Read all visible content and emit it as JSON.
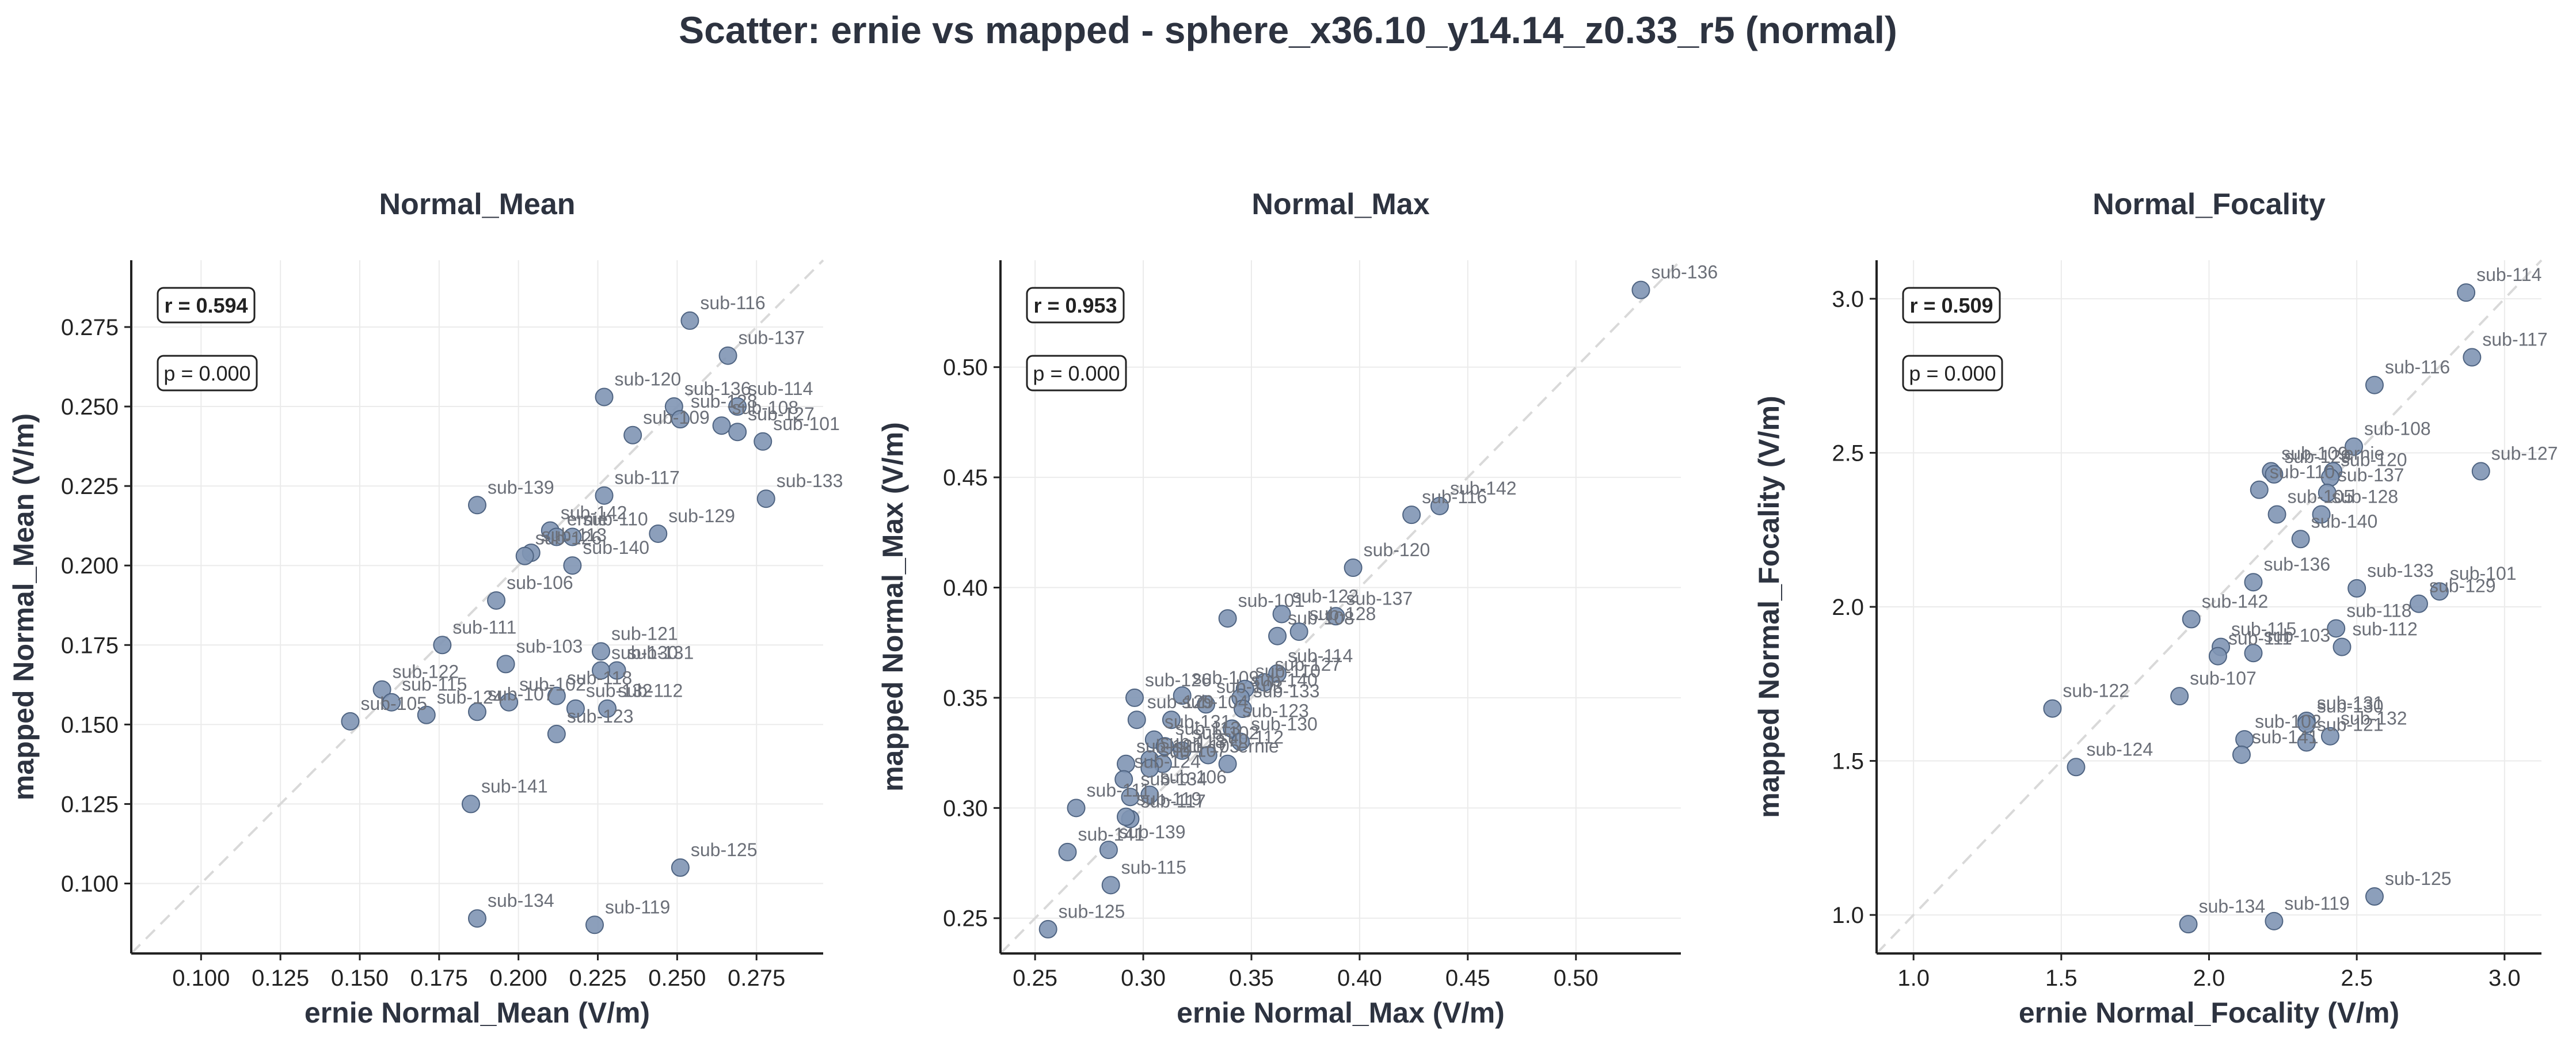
{
  "title": "Scatter: ernie vs mapped - sphere_x36.10_y14.14_z0.33_r5 (normal)",
  "colors": {
    "point": "#7f95b4",
    "point_edge": "#4f6482",
    "identity": "#d9d9d9",
    "grid": "#ebebeb",
    "text": "#2d3340"
  },
  "chart_data": [
    {
      "type": "scatter",
      "title": "Normal_Mean",
      "xlabel": "ernie Normal_Mean (V/m)",
      "ylabel": "mapped Normal_Mean (V/m)",
      "xlim": [
        0.078,
        0.296
      ],
      "ylim": [
        0.078,
        0.296
      ],
      "xticks": [
        0.1,
        0.125,
        0.15,
        0.175,
        0.2,
        0.225,
        0.25,
        0.275
      ],
      "yticks": [
        0.1,
        0.125,
        0.15,
        0.175,
        0.2,
        0.225,
        0.25,
        0.275
      ],
      "tick_labels_x": [
        "0.100",
        "0.125",
        "0.150",
        "0.175",
        "0.200",
        "0.225",
        "0.250",
        "0.275"
      ],
      "tick_labels_y": [
        "0.100",
        "0.125",
        "0.150",
        "0.175",
        "0.200",
        "0.225",
        "0.250",
        "0.275"
      ],
      "grid": true,
      "identity_line": true,
      "annotations": [
        "r = 0.594",
        "p = 0.000"
      ],
      "points": [
        {
          "label": "sub-116",
          "x": 0.254,
          "y": 0.277
        },
        {
          "label": "sub-137",
          "x": 0.266,
          "y": 0.266
        },
        {
          "label": "sub-120",
          "x": 0.227,
          "y": 0.253
        },
        {
          "label": "sub-136",
          "x": 0.249,
          "y": 0.25
        },
        {
          "label": "sub-114",
          "x": 0.269,
          "y": 0.25
        },
        {
          "label": "sub-128",
          "x": 0.251,
          "y": 0.246
        },
        {
          "label": "sub-108",
          "x": 0.264,
          "y": 0.244
        },
        {
          "label": "sub-127",
          "x": 0.269,
          "y": 0.242
        },
        {
          "label": "sub-109",
          "x": 0.236,
          "y": 0.241
        },
        {
          "label": "sub-101",
          "x": 0.277,
          "y": 0.239
        },
        {
          "label": "sub-133",
          "x": 0.278,
          "y": 0.221
        },
        {
          "label": "sub-117",
          "x": 0.227,
          "y": 0.222
        },
        {
          "label": "sub-139",
          "x": 0.187,
          "y": 0.219
        },
        {
          "label": "sub-142",
          "x": 0.21,
          "y": 0.211
        },
        {
          "label": "sub-129",
          "x": 0.244,
          "y": 0.21
        },
        {
          "label": "sub-110",
          "x": 0.217,
          "y": 0.209
        },
        {
          "label": "ernie",
          "x": 0.212,
          "y": 0.209
        },
        {
          "label": "sub-113",
          "x": 0.204,
          "y": 0.204
        },
        {
          "label": "sub-126",
          "x": 0.202,
          "y": 0.203
        },
        {
          "label": "sub-140",
          "x": 0.217,
          "y": 0.2
        },
        {
          "label": "sub-106",
          "x": 0.193,
          "y": 0.189
        },
        {
          "label": "sub-111",
          "x": 0.176,
          "y": 0.175
        },
        {
          "label": "sub-121",
          "x": 0.226,
          "y": 0.173
        },
        {
          "label": "sub-103",
          "x": 0.196,
          "y": 0.169
        },
        {
          "label": "sub-131",
          "x": 0.231,
          "y": 0.167
        },
        {
          "label": "sub-130",
          "x": 0.226,
          "y": 0.167
        },
        {
          "label": "sub-122",
          "x": 0.157,
          "y": 0.161
        },
        {
          "label": "sub-118",
          "x": 0.212,
          "y": 0.159
        },
        {
          "label": "sub-115",
          "x": 0.16,
          "y": 0.157
        },
        {
          "label": "sub-102",
          "x": 0.197,
          "y": 0.157
        },
        {
          "label": "sub-112",
          "x": 0.228,
          "y": 0.155
        },
        {
          "label": "sub-107",
          "x": 0.187,
          "y": 0.154
        },
        {
          "label": "sub-132",
          "x": 0.218,
          "y": 0.155
        },
        {
          "label": "sub-124",
          "x": 0.171,
          "y": 0.153
        },
        {
          "label": "sub-105",
          "x": 0.147,
          "y": 0.151
        },
        {
          "label": "sub-123",
          "x": 0.212,
          "y": 0.147
        },
        {
          "label": "sub-141",
          "x": 0.185,
          "y": 0.125
        },
        {
          "label": "sub-125",
          "x": 0.251,
          "y": 0.105
        },
        {
          "label": "sub-134",
          "x": 0.187,
          "y": 0.089
        },
        {
          "label": "sub-119",
          "x": 0.224,
          "y": 0.087
        }
      ]
    },
    {
      "type": "scatter",
      "title": "Normal_Max",
      "xlabel": "ernie Normal_Max (V/m)",
      "ylabel": "mapped Normal_Max (V/m)",
      "xlim": [
        0.234,
        0.5485
      ],
      "ylim": [
        0.234,
        0.5485
      ],
      "xticks": [
        0.25,
        0.3,
        0.35,
        0.4,
        0.45,
        0.5
      ],
      "yticks": [
        0.25,
        0.3,
        0.35,
        0.4,
        0.45,
        0.5
      ],
      "tick_labels_x": [
        "0.25",
        "0.30",
        "0.35",
        "0.40",
        "0.45",
        "0.50"
      ],
      "tick_labels_y": [
        "0.25",
        "0.30",
        "0.35",
        "0.40",
        "0.45",
        "0.50"
      ],
      "grid": true,
      "identity_line": true,
      "annotations": [
        "r = 0.953",
        "p = 0.000"
      ],
      "points": [
        {
          "label": "sub-136",
          "x": 0.53,
          "y": 0.535
        },
        {
          "label": "sub-142",
          "x": 0.437,
          "y": 0.437
        },
        {
          "label": "sub-116",
          "x": 0.424,
          "y": 0.433
        },
        {
          "label": "sub-120",
          "x": 0.397,
          "y": 0.409
        },
        {
          "label": "sub-101",
          "x": 0.339,
          "y": 0.386
        },
        {
          "label": "sub-122",
          "x": 0.364,
          "y": 0.388
        },
        {
          "label": "sub-137",
          "x": 0.389,
          "y": 0.387
        },
        {
          "label": "sub-108",
          "x": 0.362,
          "y": 0.378
        },
        {
          "label": "sub-128",
          "x": 0.372,
          "y": 0.38
        },
        {
          "label": "sub-114",
          "x": 0.362,
          "y": 0.361
        },
        {
          "label": "sub-126",
          "x": 0.296,
          "y": 0.35
        },
        {
          "label": "sub-109",
          "x": 0.318,
          "y": 0.351
        },
        {
          "label": "sub-127",
          "x": 0.356,
          "y": 0.357
        },
        {
          "label": "sub-110",
          "x": 0.347,
          "y": 0.354
        },
        {
          "label": "sub-140",
          "x": 0.345,
          "y": 0.35
        },
        {
          "label": "sub-133",
          "x": 0.346,
          "y": 0.345
        },
        {
          "label": "sub-103",
          "x": 0.329,
          "y": 0.347
        },
        {
          "label": "sub-129",
          "x": 0.297,
          "y": 0.34
        },
        {
          "label": "sub-104",
          "x": 0.313,
          "y": 0.34
        },
        {
          "label": "sub-123",
          "x": 0.341,
          "y": 0.336
        },
        {
          "label": "sub-131",
          "x": 0.305,
          "y": 0.331
        },
        {
          "label": "sub-113",
          "x": 0.31,
          "y": 0.328
        },
        {
          "label": "sub-102",
          "x": 0.318,
          "y": 0.326
        },
        {
          "label": "sub-130",
          "x": 0.345,
          "y": 0.33
        },
        {
          "label": "sub-112",
          "x": 0.33,
          "y": 0.324
        },
        {
          "label": "sub-118",
          "x": 0.303,
          "y": 0.322
        },
        {
          "label": "sub-105",
          "x": 0.309,
          "y": 0.32
        },
        {
          "label": "ernie",
          "x": 0.339,
          "y": 0.32
        },
        {
          "label": "sub-107",
          "x": 0.303,
          "y": 0.318
        },
        {
          "label": "sub-121",
          "x": 0.292,
          "y": 0.32
        },
        {
          "label": "sub-124",
          "x": 0.291,
          "y": 0.313
        },
        {
          "label": "sub-106",
          "x": 0.303,
          "y": 0.306
        },
        {
          "label": "sub-134",
          "x": 0.294,
          "y": 0.305
        },
        {
          "label": "sub-111",
          "x": 0.269,
          "y": 0.3
        },
        {
          "label": "sub-117",
          "x": 0.294,
          "y": 0.295
        },
        {
          "label": "sub-119",
          "x": 0.292,
          "y": 0.296
        },
        {
          "label": "sub-139",
          "x": 0.284,
          "y": 0.281
        },
        {
          "label": "sub-141",
          "x": 0.265,
          "y": 0.28
        },
        {
          "label": "sub-115",
          "x": 0.285,
          "y": 0.265
        },
        {
          "label": "sub-125",
          "x": 0.256,
          "y": 0.245
        }
      ]
    },
    {
      "type": "scatter",
      "title": "Normal_Focality",
      "xlabel": "ernie Normal_Focality (V/m)",
      "ylabel": "mapped Normal_Focality (V/m)",
      "xlim": [
        0.875,
        3.125
      ],
      "ylim": [
        0.875,
        3.125
      ],
      "xticks": [
        1.0,
        1.5,
        2.0,
        2.5,
        3.0
      ],
      "yticks": [
        1.0,
        1.5,
        2.0,
        2.5,
        3.0
      ],
      "tick_labels_x": [
        "1.0",
        "1.5",
        "2.0",
        "2.5",
        "3.0"
      ],
      "tick_labels_y": [
        "1.0",
        "1.5",
        "2.0",
        "2.5",
        "3.0"
      ],
      "grid": true,
      "identity_line": true,
      "annotations": [
        "r = 0.509",
        "p = 0.000"
      ],
      "points": [
        {
          "label": "sub-114",
          "x": 2.87,
          "y": 3.02
        },
        {
          "label": "sub-117",
          "x": 2.89,
          "y": 2.81
        },
        {
          "label": "sub-116",
          "x": 2.56,
          "y": 2.72
        },
        {
          "label": "sub-108",
          "x": 2.49,
          "y": 2.52
        },
        {
          "label": "sub-127",
          "x": 2.92,
          "y": 2.44
        },
        {
          "label": "sub-109",
          "x": 2.21,
          "y": 2.44
        },
        {
          "label": "sub-129",
          "x": 2.22,
          "y": 2.43
        },
        {
          "label": "ernie",
          "x": 2.42,
          "y": 2.44
        },
        {
          "label": "sub-120",
          "x": 2.41,
          "y": 2.42
        },
        {
          "label": "sub-110",
          "x": 2.17,
          "y": 2.38
        },
        {
          "label": "sub-137",
          "x": 2.4,
          "y": 2.37
        },
        {
          "label": "sub-105",
          "x": 2.23,
          "y": 2.3
        },
        {
          "label": "sub-128",
          "x": 2.38,
          "y": 2.3
        },
        {
          "label": "sub-140",
          "x": 2.31,
          "y": 2.22
        },
        {
          "label": "sub-136",
          "x": 2.15,
          "y": 2.08
        },
        {
          "label": "sub-133",
          "x": 2.5,
          "y": 2.06
        },
        {
          "label": "sub-101",
          "x": 2.78,
          "y": 2.05
        },
        {
          "label": "sub-129b",
          "x": 2.71,
          "y": 2.01
        },
        {
          "label": "sub-142",
          "x": 1.94,
          "y": 1.96
        },
        {
          "label": "sub-118",
          "x": 2.43,
          "y": 1.93
        },
        {
          "label": "sub-112",
          "x": 2.45,
          "y": 1.87
        },
        {
          "label": "sub-115",
          "x": 2.04,
          "y": 1.87
        },
        {
          "label": "sub-103",
          "x": 2.15,
          "y": 1.85
        },
        {
          "label": "sub-111",
          "x": 2.03,
          "y": 1.84
        },
        {
          "label": "sub-107",
          "x": 1.9,
          "y": 1.71
        },
        {
          "label": "sub-122",
          "x": 1.47,
          "y": 1.67
        },
        {
          "label": "sub-131",
          "x": 2.33,
          "y": 1.63
        },
        {
          "label": "sub-130",
          "x": 2.33,
          "y": 1.62
        },
        {
          "label": "sub-102",
          "x": 2.12,
          "y": 1.57
        },
        {
          "label": "sub-132",
          "x": 2.41,
          "y": 1.58
        },
        {
          "label": "sub-121",
          "x": 2.33,
          "y": 1.56
        },
        {
          "label": "sub-141",
          "x": 2.11,
          "y": 1.52
        },
        {
          "label": "sub-124",
          "x": 1.55,
          "y": 1.48
        },
        {
          "label": "sub-125",
          "x": 2.56,
          "y": 1.06
        },
        {
          "label": "sub-119",
          "x": 2.22,
          "y": 0.98
        },
        {
          "label": "sub-134",
          "x": 1.93,
          "y": 0.97
        }
      ]
    }
  ]
}
